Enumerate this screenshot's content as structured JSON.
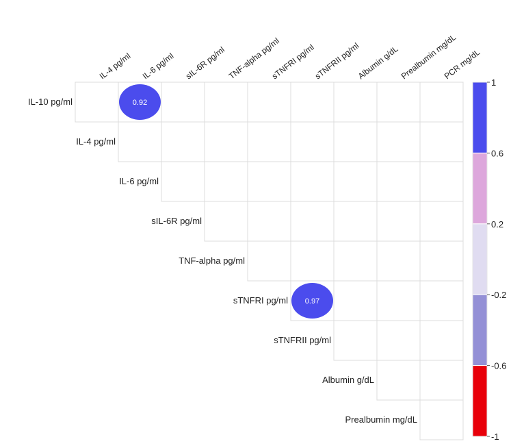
{
  "chart_data": {
    "type": "heatmap",
    "layout": "upper-triangular correlation matrix",
    "column_labels": [
      "IL-4 pg/ml",
      "IL-6 pg/ml",
      "sIL-6R pg/ml",
      "TNF-alpha pg/ml",
      "sTNFRI pg/ml",
      "sTNFRII pg/ml",
      "Albumin g/dL",
      "Prealbumin mg/dL",
      "PCR mg/dL"
    ],
    "row_labels": [
      "IL-10 pg/ml",
      "IL-4 pg/ml",
      "IL-6 pg/ml",
      "sIL-6R pg/ml",
      "TNF-alpha pg/ml",
      "sTNFRI pg/ml",
      "sTNFRII pg/ml",
      "Albumin g/dL",
      "Prealbumin mg/dL"
    ],
    "values_shown": [
      {
        "row": "IL-10 pg/ml",
        "column": "IL-6 pg/ml",
        "value": 0.92,
        "label": "0.92"
      },
      {
        "row": "sTNFRI pg/ml",
        "column": "sTNFRII pg/ml",
        "value": 0.97,
        "label": "0.97"
      }
    ],
    "colorbar": {
      "min": -1,
      "max": 1,
      "tick_labels": [
        "1",
        "0.6",
        "0.2",
        "-0.2",
        "-0.6",
        "-1"
      ],
      "bins": [
        {
          "from": 0.6,
          "to": 1,
          "color": "#4b4ced"
        },
        {
          "from": 0.2,
          "to": 0.6,
          "color": "#dda7dc"
        },
        {
          "from": -0.2,
          "to": 0.2,
          "color": "#e0dcf1"
        },
        {
          "from": -0.6,
          "to": -0.2,
          "color": "#9490d6"
        },
        {
          "from": -1,
          "to": -0.6,
          "color": "#e8000a"
        }
      ]
    },
    "grid": true,
    "legend_position": "right"
  }
}
